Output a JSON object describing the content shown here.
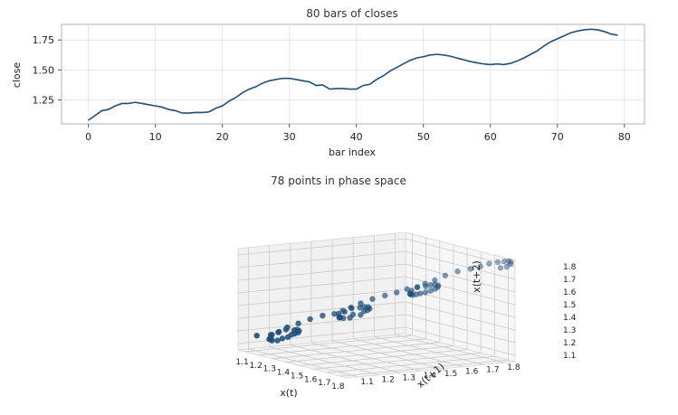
{
  "chart_data": [
    {
      "type": "line",
      "title": "80 bars of closes",
      "xlabel": "bar index",
      "ylabel": "close",
      "xlim": [
        -4,
        83
      ],
      "ylim": [
        1.05,
        1.88
      ],
      "x_ticks": [
        0,
        10,
        20,
        30,
        40,
        50,
        60,
        70,
        80
      ],
      "y_ticks": [
        1.25,
        1.5,
        1.75
      ],
      "y_tick_labels": [
        "1.25",
        "1.50",
        "1.75"
      ],
      "grid": true,
      "color": "#1f4e79",
      "series": [
        {
          "x": [
            0,
            1,
            2,
            3,
            4,
            5,
            6,
            7,
            8,
            9,
            10,
            11,
            12,
            13,
            14,
            15,
            16,
            17,
            18,
            19,
            20,
            21,
            22,
            23,
            24,
            25,
            26,
            27,
            28,
            29,
            30,
            31,
            32,
            33,
            34,
            35,
            36,
            37,
            38,
            39,
            40,
            41,
            42,
            43,
            44,
            45,
            46,
            47,
            48,
            49,
            50,
            51,
            52,
            53,
            54,
            55,
            56,
            57,
            58,
            59,
            60,
            61,
            62,
            63,
            64,
            65,
            66,
            67,
            68,
            69,
            70,
            71,
            72,
            73,
            74,
            75,
            76,
            77,
            78,
            79
          ],
          "values": [
            1.08,
            1.12,
            1.16,
            1.17,
            1.2,
            1.22,
            1.22,
            1.23,
            1.22,
            1.21,
            1.2,
            1.19,
            1.17,
            1.16,
            1.14,
            1.14,
            1.145,
            1.145,
            1.15,
            1.18,
            1.2,
            1.24,
            1.27,
            1.31,
            1.34,
            1.36,
            1.39,
            1.41,
            1.42,
            1.43,
            1.43,
            1.42,
            1.41,
            1.4,
            1.37,
            1.375,
            1.34,
            1.345,
            1.345,
            1.34,
            1.34,
            1.37,
            1.38,
            1.42,
            1.45,
            1.49,
            1.52,
            1.55,
            1.58,
            1.6,
            1.61,
            1.625,
            1.63,
            1.625,
            1.615,
            1.6,
            1.585,
            1.57,
            1.56,
            1.55,
            1.545,
            1.55,
            1.545,
            1.555,
            1.575,
            1.6,
            1.63,
            1.66,
            1.7,
            1.735,
            1.76,
            1.785,
            1.81,
            1.825,
            1.835,
            1.84,
            1.835,
            1.82,
            1.8,
            1.79
          ]
        }
      ]
    },
    {
      "type": "scatter",
      "subtype": "3d",
      "title": "78 points in phase space",
      "xlabel": "x(t)",
      "ylabel": "x(t+1)",
      "zlabel": "x(t+2)",
      "x_ticks": [
        "1.1",
        "1.2",
        "1.3",
        "1.4",
        "1.5",
        "1.6",
        "1.7",
        "1.8"
      ],
      "y_ticks": [
        "1.1",
        "1.2",
        "1.3",
        "1.4",
        "1.5",
        "1.6",
        "1.7",
        "1.8"
      ],
      "z_ticks": [
        "1.1",
        "1.2",
        "1.3",
        "1.4",
        "1.5",
        "1.6",
        "1.7",
        "1.8"
      ],
      "grid": true,
      "color": "#1f4e79",
      "embedding": "delay lag 1, dimension 3 of the closes series"
    }
  ]
}
